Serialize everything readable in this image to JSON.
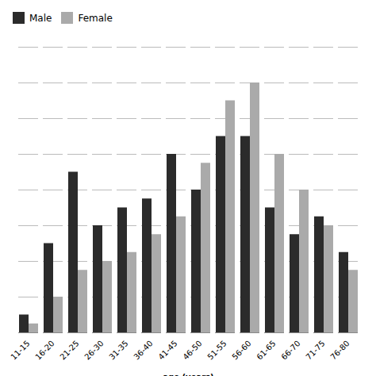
{
  "chart_data": {
    "type": "bar",
    "categories": [
      "11-15",
      "16-20",
      "21-25",
      "26-30",
      "31-35",
      "36-40",
      "41-45",
      "46-50",
      "51-55",
      "56-60",
      "61-65",
      "66-70",
      "71-75",
      "76-80"
    ],
    "series": [
      {
        "name": "Male",
        "color": "#2b2b2b",
        "values": [
          2,
          10,
          18,
          12,
          14,
          15,
          20,
          16,
          22,
          22,
          14,
          11,
          13,
          9
        ]
      },
      {
        "name": "Female",
        "color": "#aaaaaa",
        "values": [
          1,
          4,
          7,
          8,
          9,
          11,
          13,
          19,
          26,
          28,
          20,
          16,
          12,
          7
        ]
      }
    ],
    "xlabel": "age (years)",
    "ylim": [
      0,
      32
    ],
    "yticks": [
      0,
      4,
      8,
      12,
      16,
      20,
      24,
      28,
      32
    ],
    "grid": true,
    "legend": "upper left",
    "tick_labels": "x"
  }
}
